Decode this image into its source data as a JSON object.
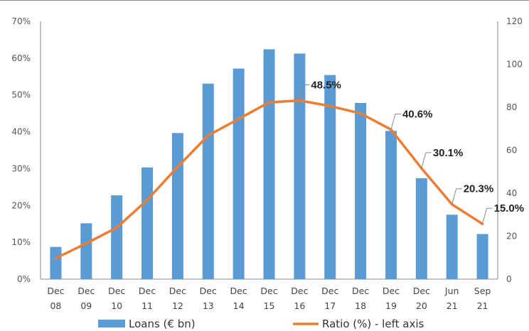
{
  "chart_data": {
    "type": "bar",
    "categories": [
      [
        "Dec",
        "08"
      ],
      [
        "Dec",
        "09"
      ],
      [
        "Dec",
        "10"
      ],
      [
        "Dec",
        "11"
      ],
      [
        "Dec",
        "12"
      ],
      [
        "Dec",
        "13"
      ],
      [
        "Dec",
        "14"
      ],
      [
        "Dec",
        "15"
      ],
      [
        "Dec",
        "16"
      ],
      [
        "Dec",
        "17"
      ],
      [
        "Dec",
        "18"
      ],
      [
        "Dec",
        "19"
      ],
      [
        "Dec",
        "20"
      ],
      [
        "Jun",
        "21"
      ],
      [
        "Sep",
        "21"
      ]
    ],
    "left_axis": {
      "min": 0,
      "max": 70,
      "step": 10,
      "tick_labels": [
        "0%",
        "10%",
        "20%",
        "30%",
        "40%",
        "50%",
        "60%",
        "70%"
      ]
    },
    "right_axis": {
      "min": 0,
      "max": 120,
      "step": 20,
      "tick_labels": [
        "0",
        "20",
        "40",
        "60",
        "80",
        "100",
        "120"
      ]
    },
    "series": [
      {
        "name": "Loans (€ bn)",
        "type": "bar",
        "axis": "right",
        "color": "#5B9BD5",
        "values": [
          15,
          26,
          39,
          52,
          68,
          91,
          98,
          107,
          105,
          95,
          82,
          69,
          47,
          30,
          21
        ]
      },
      {
        "name": "Ratio (%) - left axis",
        "type": "line",
        "axis": "left",
        "color": "#ED7D31",
        "values": [
          5.7,
          9.7,
          14.0,
          21.5,
          30.5,
          39.0,
          43.5,
          48.0,
          48.5,
          47.0,
          45.0,
          40.6,
          30.1,
          20.3,
          15.0
        ]
      }
    ],
    "data_labels": [
      {
        "index": 8,
        "text": "48.5%"
      },
      {
        "index": 11,
        "text": "40.6%"
      },
      {
        "index": 12,
        "text": "30.1%"
      },
      {
        "index": 13,
        "text": "20.3%"
      },
      {
        "index": 14,
        "text": "15.0%"
      }
    ],
    "legend": {
      "position": "bottom"
    },
    "grid": false
  }
}
